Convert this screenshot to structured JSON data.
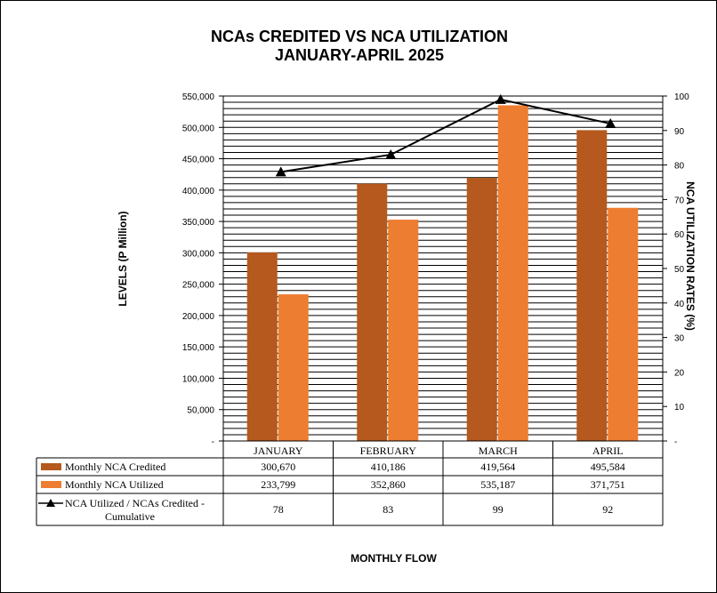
{
  "chart_data": {
    "type": "bar",
    "title": "NCAs CREDITED VS NCA UTILIZATION",
    "subtitle": "JANUARY-APRIL 2025",
    "xlabel": "MONTHLY FLOW",
    "ylabel": "LEVELS (P Million)",
    "y2label": "NCA UTILIZATION RATES (%)",
    "categories": [
      "JANUARY",
      "FEBRUARY",
      "MARCH",
      "APRIL"
    ],
    "ylim": [
      0,
      550000
    ],
    "y2lim": [
      0,
      100
    ],
    "yticks": [
      "-",
      "50,000",
      "100,000",
      "150,000",
      "200,000",
      "250,000",
      "300,000",
      "350,000",
      "400,000",
      "450,000",
      "500,000",
      "550,000"
    ],
    "y2ticks": [
      "-",
      "10",
      "20",
      "30",
      "40",
      "50",
      "60",
      "70",
      "80",
      "90",
      "100"
    ],
    "grid": true,
    "legend_placement": "data table below chart",
    "series": [
      {
        "name": "Monthly NCA Credited",
        "kind": "bar",
        "axis": "left",
        "color": "#B5591E",
        "values": [
          300670,
          410186,
          419564,
          495584
        ],
        "labels": [
          "300,670",
          "410,186",
          "419,564",
          "495,584"
        ]
      },
      {
        "name": "Monthly NCA Utilized",
        "kind": "bar",
        "axis": "left",
        "color": "#ED7D31",
        "values": [
          233799,
          352860,
          535187,
          371751
        ],
        "labels": [
          "233,799",
          "352,860",
          "535,187",
          "371,751"
        ]
      },
      {
        "name": "NCA Utilized / NCAs Credited -\nCumulative",
        "kind": "line",
        "axis": "right",
        "color": "#000000",
        "values": [
          78,
          83,
          99,
          92
        ],
        "labels": [
          "78",
          "83",
          "99",
          "92"
        ]
      }
    ]
  }
}
